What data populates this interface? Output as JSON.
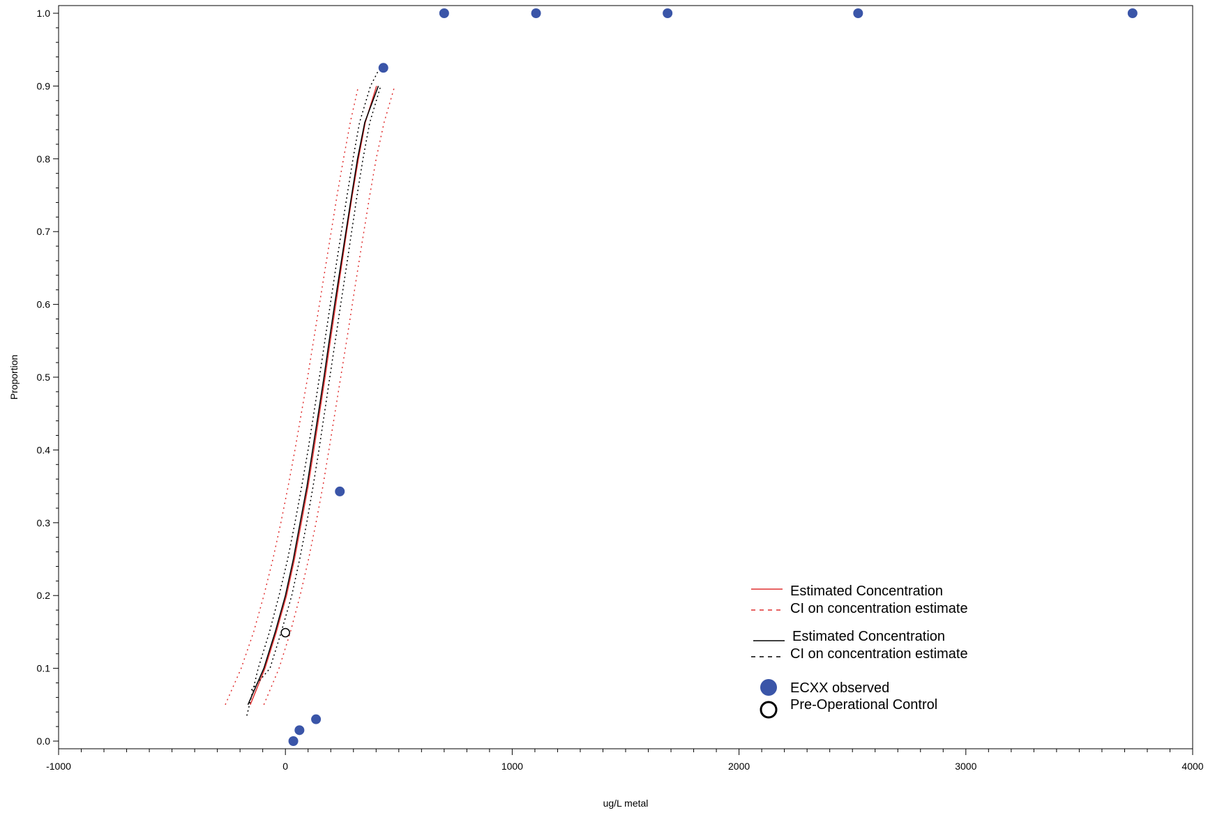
{
  "chart_data": {
    "type": "scatter",
    "xlabel": "ug/L metal",
    "ylabel": "Proportion",
    "xlim": [
      -1000,
      4000
    ],
    "ylim": [
      0,
      1
    ],
    "x_ticks": [
      -1000,
      0,
      1000,
      2000,
      3000,
      4000
    ],
    "y_ticks": [
      "0.0",
      "0.1",
      "0.2",
      "0.3",
      "0.4",
      "0.5",
      "0.6",
      "0.7",
      "0.8",
      "0.9",
      "1.0"
    ],
    "grid": false,
    "legend_position": "bottom-right",
    "series": [
      {
        "name": "Estimated Concentration",
        "kind": "line",
        "style": "solid",
        "color": "#e03030",
        "points": [
          [
            -155,
            0.05
          ],
          [
            -90,
            0.1
          ],
          [
            -40,
            0.15
          ],
          [
            5,
            0.2
          ],
          [
            40,
            0.25
          ],
          [
            70,
            0.3
          ],
          [
            100,
            0.35
          ],
          [
            125,
            0.4
          ],
          [
            150,
            0.45
          ],
          [
            175,
            0.5
          ],
          [
            198,
            0.55
          ],
          [
            222,
            0.6
          ],
          [
            246,
            0.65
          ],
          [
            270,
            0.7
          ],
          [
            295,
            0.75
          ],
          [
            322,
            0.8
          ],
          [
            352,
            0.85
          ],
          [
            402,
            0.9
          ]
        ]
      },
      {
        "name": "CI on concentration estimate",
        "kind": "line",
        "style": "dashed",
        "color": "#e03030",
        "points": [
          [
            -265,
            0.05
          ],
          [
            -195,
            0.1
          ],
          [
            -140,
            0.15
          ],
          [
            -95,
            0.2
          ],
          [
            -55,
            0.25
          ],
          [
            -20,
            0.3
          ],
          [
            12,
            0.35
          ],
          [
            42,
            0.4
          ],
          [
            70,
            0.45
          ],
          [
            98,
            0.5
          ],
          [
            124,
            0.55
          ],
          [
            150,
            0.6
          ],
          [
            176,
            0.65
          ],
          [
            202,
            0.7
          ],
          [
            228,
            0.75
          ],
          [
            256,
            0.8
          ],
          [
            286,
            0.85
          ],
          [
            322,
            0.9
          ]
        ]
      },
      {
        "name": "CI on concentration estimate",
        "kind": "line",
        "style": "dashed",
        "color": "#e03030",
        "points": [
          [
            -95,
            0.05
          ],
          [
            -28,
            0.1
          ],
          [
            22,
            0.15
          ],
          [
            65,
            0.2
          ],
          [
            102,
            0.25
          ],
          [
            135,
            0.3
          ],
          [
            165,
            0.35
          ],
          [
            192,
            0.4
          ],
          [
            218,
            0.45
          ],
          [
            244,
            0.5
          ],
          [
            270,
            0.55
          ],
          [
            295,
            0.6
          ],
          [
            320,
            0.65
          ],
          [
            346,
            0.7
          ],
          [
            372,
            0.75
          ],
          [
            400,
            0.8
          ],
          [
            435,
            0.85
          ],
          [
            482,
            0.9
          ]
        ]
      },
      {
        "name": "Estimated Concentration",
        "kind": "line",
        "style": "solid",
        "color": "#000000",
        "points": [
          [
            -165,
            0.05
          ],
          [
            -95,
            0.1
          ],
          [
            -45,
            0.15
          ],
          [
            0,
            0.2
          ],
          [
            35,
            0.25
          ],
          [
            65,
            0.3
          ],
          [
            95,
            0.35
          ],
          [
            120,
            0.4
          ],
          [
            145,
            0.45
          ],
          [
            170,
            0.5
          ],
          [
            193,
            0.55
          ],
          [
            217,
            0.6
          ],
          [
            242,
            0.65
          ],
          [
            267,
            0.7
          ],
          [
            292,
            0.75
          ],
          [
            318,
            0.8
          ],
          [
            350,
            0.85
          ],
          [
            410,
            0.9
          ]
        ]
      },
      {
        "name": "CI on concentration estimate",
        "kind": "line",
        "style": "dashed",
        "color": "#000000",
        "points": [
          [
            -170,
            0.035
          ],
          [
            -120,
            0.1
          ],
          [
            -70,
            0.15
          ],
          [
            -28,
            0.2
          ],
          [
            10,
            0.25
          ],
          [
            42,
            0.3
          ],
          [
            72,
            0.35
          ],
          [
            100,
            0.4
          ],
          [
            125,
            0.45
          ],
          [
            150,
            0.5
          ],
          [
            174,
            0.55
          ],
          [
            198,
            0.6
          ],
          [
            222,
            0.65
          ],
          [
            247,
            0.7
          ],
          [
            272,
            0.75
          ],
          [
            298,
            0.8
          ],
          [
            327,
            0.85
          ],
          [
            375,
            0.9
          ],
          [
            408,
            0.92
          ]
        ]
      },
      {
        "name": "CI on concentration estimate",
        "kind": "line",
        "style": "dashed",
        "color": "#000000",
        "points": [
          [
            -150,
            0.07
          ],
          [
            -68,
            0.1
          ],
          [
            -18,
            0.15
          ],
          [
            28,
            0.2
          ],
          [
            63,
            0.25
          ],
          [
            94,
            0.3
          ],
          [
            122,
            0.35
          ],
          [
            148,
            0.4
          ],
          [
            172,
            0.45
          ],
          [
            196,
            0.5
          ],
          [
            220,
            0.55
          ],
          [
            244,
            0.6
          ],
          [
            268,
            0.65
          ],
          [
            292,
            0.7
          ],
          [
            316,
            0.75
          ],
          [
            342,
            0.8
          ],
          [
            372,
            0.85
          ],
          [
            420,
            0.9
          ]
        ]
      },
      {
        "name": "ECXX observed",
        "kind": "points",
        "color": "#3a55a8",
        "points": [
          [
            35,
            0.0
          ],
          [
            62,
            0.015
          ],
          [
            135,
            0.03
          ],
          [
            240,
            0.343
          ],
          [
            432,
            0.925
          ],
          [
            700,
            1.0
          ],
          [
            1105,
            1.0
          ],
          [
            1685,
            1.0
          ],
          [
            2525,
            1.0
          ],
          [
            3735,
            1.0
          ]
        ]
      },
      {
        "name": "Pre-Operational Control",
        "kind": "points",
        "color": "#000000",
        "points": [
          [
            0,
            0.149
          ]
        ]
      }
    ]
  },
  "legend": {
    "red_estimate": "Estimated Concentration",
    "red_ci": "CI on concentration estimate",
    "black_estimate": "Estimated Concentration",
    "black_ci": "CI on concentration estimate",
    "observed": "ECXX observed",
    "control": "Pre-Operational Control"
  },
  "colors": {
    "red": "#e03030",
    "black": "#000000",
    "observed": "#3a55a8"
  }
}
